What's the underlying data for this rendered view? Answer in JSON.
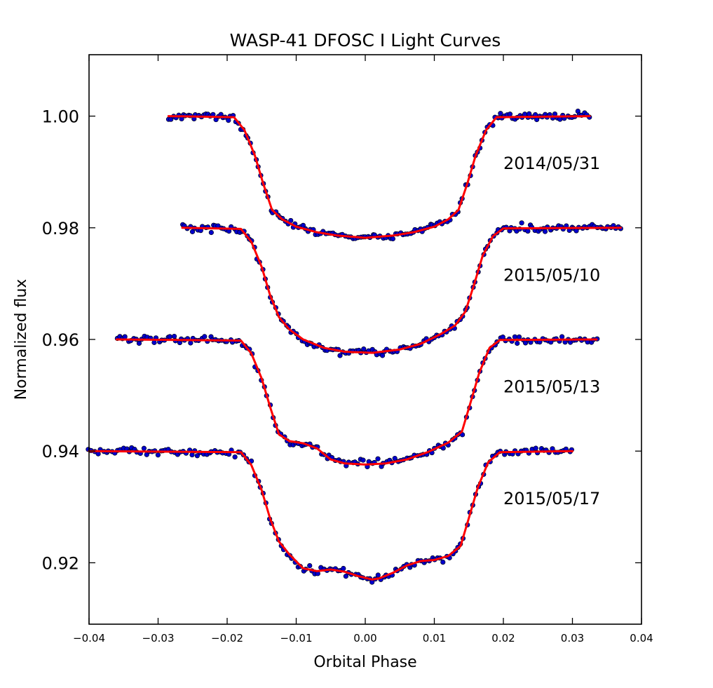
{
  "chart_data": {
    "type": "scatter",
    "title": "WASP-41 DFOSC I Light Curves",
    "xlabel": "Orbital Phase",
    "ylabel": "Normalized flux",
    "xlim": [
      -0.04,
      0.04
    ],
    "ylim": [
      0.909,
      1.011
    ],
    "grid": false,
    "x_ticks": [
      -0.04,
      -0.03,
      -0.02,
      -0.01,
      0.0,
      0.01,
      0.02,
      0.03,
      0.04
    ],
    "x_tick_labels": [
      "−0.04",
      "−0.03",
      "−0.02",
      "−0.01",
      "0.00",
      "0.01",
      "0.02",
      "0.03",
      "0.04"
    ],
    "y_ticks": [
      0.92,
      0.94,
      0.96,
      0.98,
      1.0
    ],
    "y_tick_labels": [
      "0.92",
      "0.94",
      "0.96",
      "0.98",
      "1.00"
    ],
    "marker_color": "#0000cc",
    "model_color": "#ff0000",
    "series": [
      {
        "name": "2014/05/31",
        "label_position": [
          0.02,
          0.9905
        ],
        "baseline": 1.0,
        "x_range": [
          -0.0285,
          0.0325
        ],
        "model": {
          "x": [
            -0.0285,
            -0.019,
            -0.0175,
            -0.016,
            -0.0148,
            -0.0135,
            -0.012,
            -0.01,
            -0.007,
            -0.004,
            0.0,
            0.004,
            0.007,
            0.01,
            0.012,
            0.0135,
            0.0148,
            0.016,
            0.0175,
            0.019,
            0.0325
          ],
          "y": [
            1.0,
            0.9998,
            0.9975,
            0.993,
            0.988,
            0.9832,
            0.9815,
            0.9802,
            0.9792,
            0.9786,
            0.9782,
            0.9786,
            0.9792,
            0.9802,
            0.9815,
            0.9832,
            0.988,
            0.993,
            0.9975,
            0.9998,
            1.0
          ]
        }
      },
      {
        "name": "2015/05/10",
        "label_position": [
          0.02,
          0.9705
        ],
        "baseline": 0.98,
        "x_range": [
          -0.0265,
          0.037
        ],
        "model": {
          "x": [
            -0.0265,
            -0.018,
            -0.0165,
            -0.015,
            -0.0138,
            -0.0125,
            -0.011,
            -0.009,
            -0.006,
            -0.003,
            0.001,
            0.005,
            0.008,
            0.011,
            0.013,
            0.0145,
            0.0158,
            0.017,
            0.0185,
            0.02,
            0.037
          ],
          "y": [
            0.98,
            0.9798,
            0.9775,
            0.973,
            0.968,
            0.964,
            0.9618,
            0.96,
            0.9585,
            0.9578,
            0.9576,
            0.9582,
            0.9592,
            0.961,
            0.9625,
            0.965,
            0.97,
            0.975,
            0.9785,
            0.9799,
            0.98
          ]
        }
      },
      {
        "name": "2015/05/13",
        "label_position": [
          0.02,
          0.9505
        ],
        "baseline": 0.96,
        "x_range": [
          -0.036,
          0.0335
        ],
        "model": {
          "x": [
            -0.036,
            -0.018,
            -0.0165,
            -0.015,
            -0.0138,
            -0.0125,
            -0.011,
            -0.009,
            -0.007,
            -0.005,
            -0.003,
            0.0,
            0.003,
            0.006,
            0.009,
            0.012,
            0.014,
            0.0152,
            0.0165,
            0.018,
            0.0195,
            0.0335
          ],
          "y": [
            0.96,
            0.9598,
            0.9575,
            0.953,
            0.948,
            0.943,
            0.9418,
            0.9414,
            0.9405,
            0.9385,
            0.9378,
            0.9376,
            0.9378,
            0.9385,
            0.9398,
            0.9415,
            0.9435,
            0.9485,
            0.954,
            0.9585,
            0.9599,
            0.96
          ]
        }
      },
      {
        "name": "2015/05/17",
        "label_position": [
          0.02,
          0.9305
        ],
        "baseline": 0.94,
        "x_range": [
          -0.04,
          0.03
        ],
        "model": {
          "x": [
            -0.04,
            -0.018,
            -0.0165,
            -0.015,
            -0.0138,
            -0.0125,
            -0.011,
            -0.009,
            -0.007,
            -0.005,
            -0.003,
            -0.001,
            0.001,
            0.002,
            0.004,
            0.006,
            0.008,
            0.01,
            0.012,
            0.0138,
            0.015,
            0.0163,
            0.0178,
            0.0195,
            0.03
          ],
          "y": [
            0.94,
            0.9398,
            0.9375,
            0.933,
            0.928,
            0.9238,
            0.9215,
            0.919,
            0.9185,
            0.9188,
            0.9184,
            0.9176,
            0.917,
            0.9172,
            0.9182,
            0.9195,
            0.9203,
            0.9205,
            0.9212,
            0.923,
            0.928,
            0.9335,
            0.938,
            0.9398,
            0.94
          ]
        }
      }
    ]
  }
}
